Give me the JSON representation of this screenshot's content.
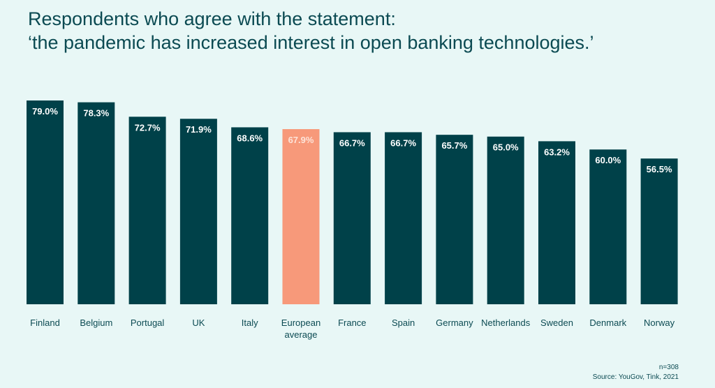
{
  "chart_data": {
    "type": "bar",
    "title_line1": "Respondents who agree with the statement:",
    "title_line2": "‘the pandemic has increased interest in open banking technologies.’",
    "categories": [
      "Finland",
      "Belgium",
      "Portugal",
      "UK",
      "Italy",
      "European average",
      "France",
      "Spain",
      "Germany",
      "Netherlands",
      "Sweden",
      "Denmark",
      "Norway"
    ],
    "category_lines": [
      [
        "Finland"
      ],
      [
        "Belgium"
      ],
      [
        "Portugal"
      ],
      [
        "UK"
      ],
      [
        "Italy"
      ],
      [
        "European",
        "average"
      ],
      [
        "France"
      ],
      [
        "Spain"
      ],
      [
        "Germany"
      ],
      [
        "Netherlands"
      ],
      [
        "Sweden"
      ],
      [
        "Denmark"
      ],
      [
        "Norway"
      ]
    ],
    "values": [
      79.0,
      78.3,
      72.7,
      71.9,
      68.6,
      67.9,
      66.7,
      66.7,
      65.7,
      65.0,
      63.2,
      60.0,
      56.5
    ],
    "labels": [
      "79.0%",
      "78.3%",
      "72.7%",
      "71.9%",
      "68.6%",
      "67.9%",
      "66.7%",
      "66.7%",
      "65.7%",
      "65.0%",
      "63.2%",
      "60.0%",
      "56.5%"
    ],
    "highlight_index": 5,
    "ylim": [
      0,
      79.0
    ],
    "grid": false,
    "colors": {
      "bar": "#004149",
      "highlight": "#f7997a",
      "label_on_bar": "#ffffff",
      "label_on_highlight": "#fde4d9",
      "axis_text": "#0b4a52"
    }
  },
  "footer": {
    "sample": "n=308",
    "source": "Source: YouGov, Tink, 2021"
  }
}
